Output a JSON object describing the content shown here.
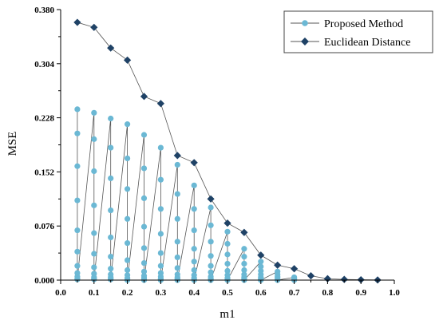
{
  "chart_data": {
    "type": "scatter",
    "xlabel": "m1",
    "ylabel": "MSE",
    "xlim": [
      0.0,
      1.0
    ],
    "ylim": [
      0.0,
      0.38
    ],
    "xticks": [
      0.0,
      0.1,
      0.2,
      0.3,
      0.4,
      0.5,
      0.6,
      0.7,
      0.8,
      0.9,
      1.0
    ],
    "xtick_labels": [
      "0.0",
      "0.1",
      "0.2",
      "0.3",
      "0.4",
      "0.5",
      "0.6",
      "0.7",
      "0.8",
      "0.9",
      "1.0"
    ],
    "yticks": [
      0.0,
      0.076,
      0.152,
      0.228,
      0.304,
      0.38
    ],
    "ytick_labels": [
      "0.000",
      "0.076",
      "0.152",
      "0.228",
      "0.304",
      "0.380"
    ],
    "grid": false,
    "legend_position": "top-right",
    "series": [
      {
        "name": "Proposed Method",
        "marker": "circle",
        "color": "#6bb8d4",
        "line_color": "#555555",
        "groups": [
          {
            "x": 0.05,
            "y": [
              0.24,
              0.206,
              0.16,
              0.112,
              0.07,
              0.04,
              0.02,
              0.01,
              0.005,
              0.002,
              0.001
            ]
          },
          {
            "x": 0.1,
            "y": [
              0.235,
              0.198,
              0.153,
              0.105,
              0.066,
              0.037,
              0.018,
              0.009,
              0.004,
              0.002,
              0.001
            ]
          },
          {
            "x": 0.15,
            "y": [
              0.227,
              0.186,
              0.143,
              0.098,
              0.06,
              0.033,
              0.016,
              0.008,
              0.004,
              0.002,
              0.001
            ]
          },
          {
            "x": 0.2,
            "y": [
              0.219,
              0.171,
              0.128,
              0.086,
              0.052,
              0.028,
              0.014,
              0.007,
              0.003,
              0.001,
              0.0
            ]
          },
          {
            "x": 0.25,
            "y": [
              0.204,
              0.157,
              0.115,
              0.075,
              0.045,
              0.024,
              0.012,
              0.006,
              0.003,
              0.001,
              0.0
            ]
          },
          {
            "x": 0.3,
            "y": [
              0.186,
              0.141,
              0.1,
              0.065,
              0.038,
              0.02,
              0.01,
              0.005,
              0.002,
              0.001,
              0.0
            ]
          },
          {
            "x": 0.35,
            "y": [
              0.162,
              0.121,
              0.086,
              0.054,
              0.032,
              0.017,
              0.008,
              0.004,
              0.002,
              0.001,
              0.0
            ]
          },
          {
            "x": 0.4,
            "y": [
              0.133,
              0.1,
              0.07,
              0.044,
              0.026,
              0.014,
              0.007,
              0.003,
              0.001,
              0.0
            ]
          },
          {
            "x": 0.45,
            "y": [
              0.102,
              0.077,
              0.054,
              0.034,
              0.02,
              0.011,
              0.005,
              0.002,
              0.001,
              0.0
            ]
          },
          {
            "x": 0.5,
            "y": [
              0.068,
              0.051,
              0.036,
              0.023,
              0.013,
              0.007,
              0.003,
              0.001,
              0.0
            ]
          },
          {
            "x": 0.55,
            "y": [
              0.044,
              0.033,
              0.023,
              0.014,
              0.008,
              0.004,
              0.002,
              0.001,
              0.0
            ]
          },
          {
            "x": 0.6,
            "y": [
              0.026,
              0.019,
              0.013,
              0.008,
              0.004,
              0.002,
              0.001,
              0.0
            ]
          },
          {
            "x": 0.65,
            "y": [
              0.012,
              0.008,
              0.005,
              0.003,
              0.001,
              0.0
            ]
          },
          {
            "x": 0.7,
            "y": [
              0.004,
              0.002,
              0.001,
              0.0
            ]
          }
        ]
      },
      {
        "name": "Euclidean Distance",
        "marker": "diamond",
        "color": "#1f4266",
        "line_color": "#555555",
        "x": [
          0.05,
          0.1,
          0.15,
          0.2,
          0.25,
          0.3,
          0.35,
          0.4,
          0.45,
          0.5,
          0.55,
          0.6,
          0.65,
          0.7,
          0.75,
          0.8,
          0.85,
          0.9,
          0.95
        ],
        "values": [
          0.362,
          0.355,
          0.326,
          0.309,
          0.258,
          0.248,
          0.175,
          0.165,
          0.114,
          0.08,
          0.067,
          0.035,
          0.021,
          0.016,
          0.006,
          0.002,
          0.001,
          0.0005,
          0.0002
        ]
      }
    ]
  }
}
